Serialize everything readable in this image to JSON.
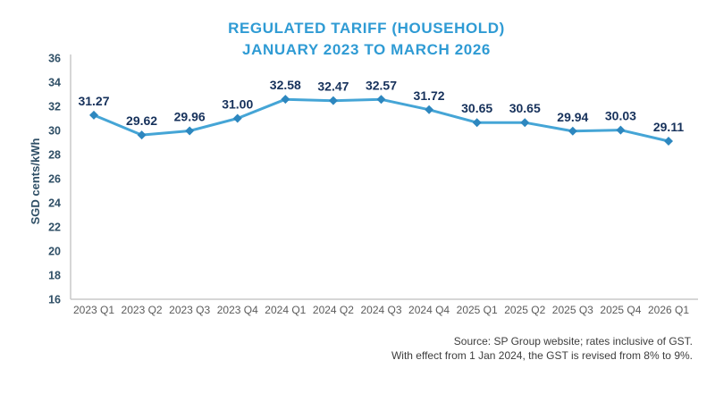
{
  "page": {
    "title_line1": "REGULATED TARIFF (HOUSEHOLD)",
    "title_line2": "JANUARY 2023 TO MARCH 2026",
    "source_line1": "Source: SP Group website; rates inclusive of GST.",
    "source_line2": "With effect from 1 Jan 2024, the GST is revised from 8% to 9%."
  },
  "chart_data": {
    "type": "line",
    "title": "REGULATED TARIFF (HOUSEHOLD) JANUARY 2023 TO MARCH 2026",
    "categories": [
      "2023 Q1",
      "2023 Q2",
      "2023 Q3",
      "2023 Q4",
      "2024 Q1",
      "2024 Q2",
      "2024 Q3",
      "2024 Q4",
      "2025 Q1",
      "2025 Q2",
      "2025 Q3",
      "2025 Q4",
      "2026 Q1"
    ],
    "values": [
      31.27,
      29.62,
      29.96,
      31.0,
      32.58,
      32.47,
      32.57,
      31.72,
      30.65,
      30.65,
      29.94,
      30.03,
      29.11
    ],
    "value_labels": [
      "31.27",
      "29.62",
      "29.96",
      "31.00",
      "32.58",
      "32.47",
      "32.57",
      "31.72",
      "30.65",
      "30.65",
      "29.94",
      "30.03",
      "29.11"
    ],
    "xlabel": "",
    "ylabel": "SGD cents/kWh",
    "ylim": [
      16,
      36
    ],
    "ytick_step": 2,
    "grid": false,
    "legend": "none",
    "marker": "diamond",
    "colors": {
      "title": "#2F9BD4",
      "line": "#45A5D6",
      "marker": "#2D87BF",
      "data_label": "#16315B",
      "y_tick": "#2F4F66",
      "x_tick": "#5B5B5B",
      "axis": "#C8C8C8",
      "source": "#3D3D3D"
    }
  }
}
